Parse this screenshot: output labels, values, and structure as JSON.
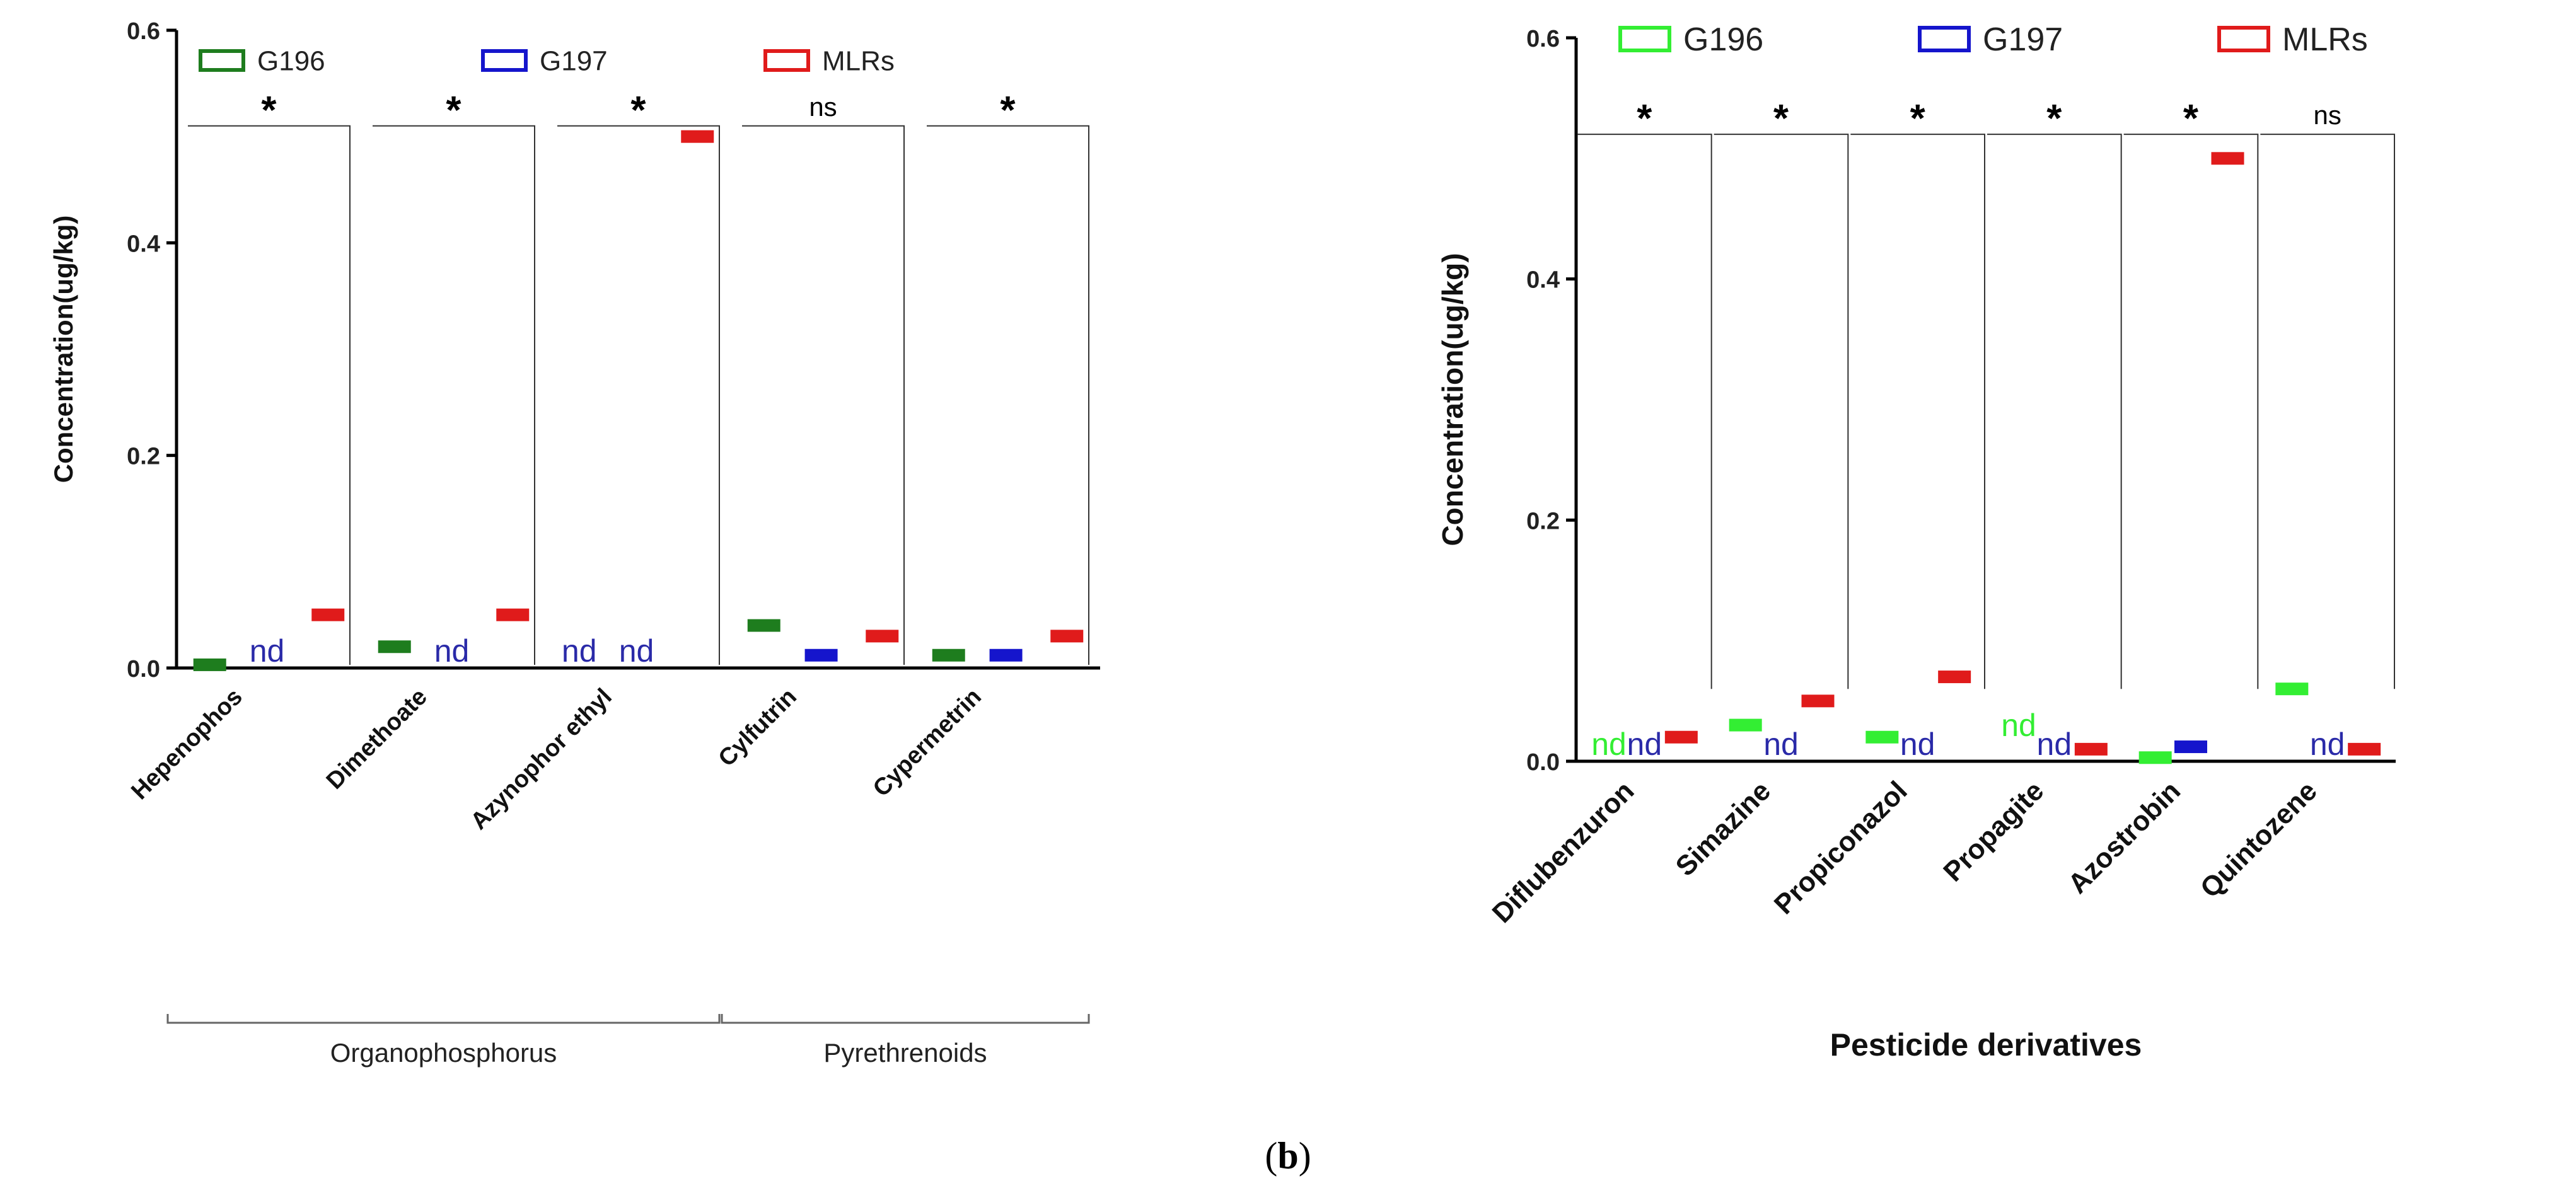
{
  "caption": {
    "open": "(",
    "letter": "b",
    "close": ")"
  },
  "colors": {
    "G196_left": "#1e7d1e",
    "G196_right": "#33ee33",
    "G197": "#1515cc",
    "MLRs": "#e01b1b",
    "axis": "#000000",
    "nd": "#2a2aa8"
  },
  "chart_data": [
    {
      "type": "bar",
      "title": "",
      "xlabel": "",
      "ylabel": "Concentration(ug/kg)",
      "ylim": [
        0,
        0.6
      ],
      "yticks": [
        "0.0",
        "0.2",
        "0.4",
        "0.6"
      ],
      "legend": {
        "placement": "top-left",
        "entries": [
          "G196",
          "G197",
          "MLRs"
        ]
      },
      "categories": [
        "Hepenophos",
        "Dimethoate",
        "Azynophor ethyl",
        "Cylfutrin",
        "Cypermetrin"
      ],
      "series": [
        {
          "name": "G196",
          "values": [
            0.003,
            0.02,
            null,
            0.04,
            0.012
          ]
        },
        {
          "name": "G197",
          "values": [
            null,
            null,
            null,
            0.012,
            0.012
          ]
        },
        {
          "name": "MLRs",
          "values": [
            0.05,
            0.05,
            0.5,
            0.03,
            0.03
          ]
        }
      ],
      "nd_labels": [
        {
          "category": "Hepenophos",
          "series": "G197",
          "text": "nd"
        },
        {
          "category": "Dimethoate",
          "series": "G197",
          "text": "nd"
        },
        {
          "category": "Azynophor ethyl",
          "series": "G196",
          "text": "nd"
        },
        {
          "category": "Azynophor ethyl",
          "series": "G197",
          "text": "nd"
        }
      ],
      "significance": [
        "*",
        "*",
        "*",
        "ns",
        "*"
      ],
      "groups": [
        {
          "label": "Organophosphorus",
          "from": 0,
          "to": 2
        },
        {
          "label": "Pyrethrenoids",
          "from": 3,
          "to": 4
        }
      ]
    },
    {
      "type": "bar",
      "title": "",
      "xlabel": "Pesticide derivatives",
      "ylabel": "Concentration(ug/kg)",
      "ylim": [
        0,
        0.6
      ],
      "yticks": [
        "0.0",
        "0.2",
        "0.4",
        "0.6"
      ],
      "legend": {
        "placement": "top-left",
        "entries": [
          "G196",
          "G197",
          "MLRs"
        ]
      },
      "categories": [
        "Diflubenzuron",
        "Simazine",
        "Propiconazol",
        "Propagite",
        "Azostrobin",
        "Quintozene"
      ],
      "series": [
        {
          "name": "G196",
          "values": [
            null,
            0.03,
            0.02,
            null,
            0.003,
            0.06
          ]
        },
        {
          "name": "G197",
          "values": [
            null,
            null,
            null,
            null,
            0.012,
            null
          ]
        },
        {
          "name": "MLRs",
          "values": [
            0.02,
            0.05,
            0.07,
            0.01,
            0.5,
            0.01
          ]
        }
      ],
      "nd_labels": [
        {
          "category": "Diflubenzuron",
          "series": "G196",
          "text": "nd"
        },
        {
          "category": "Diflubenzuron",
          "series": "G197",
          "text": "nd"
        },
        {
          "category": "Simazine",
          "series": "G197",
          "text": "nd"
        },
        {
          "category": "Propiconazol",
          "series": "G197",
          "text": "nd"
        },
        {
          "category": "Propagite",
          "series": "G196",
          "text": "nd"
        },
        {
          "category": "Propagite",
          "series": "G197",
          "text": "nd"
        },
        {
          "category": "Quintozene",
          "series": "G197",
          "text": "nd"
        }
      ],
      "significance": [
        "*",
        "*",
        "*",
        "*",
        "*",
        "ns"
      ],
      "groups": []
    }
  ]
}
